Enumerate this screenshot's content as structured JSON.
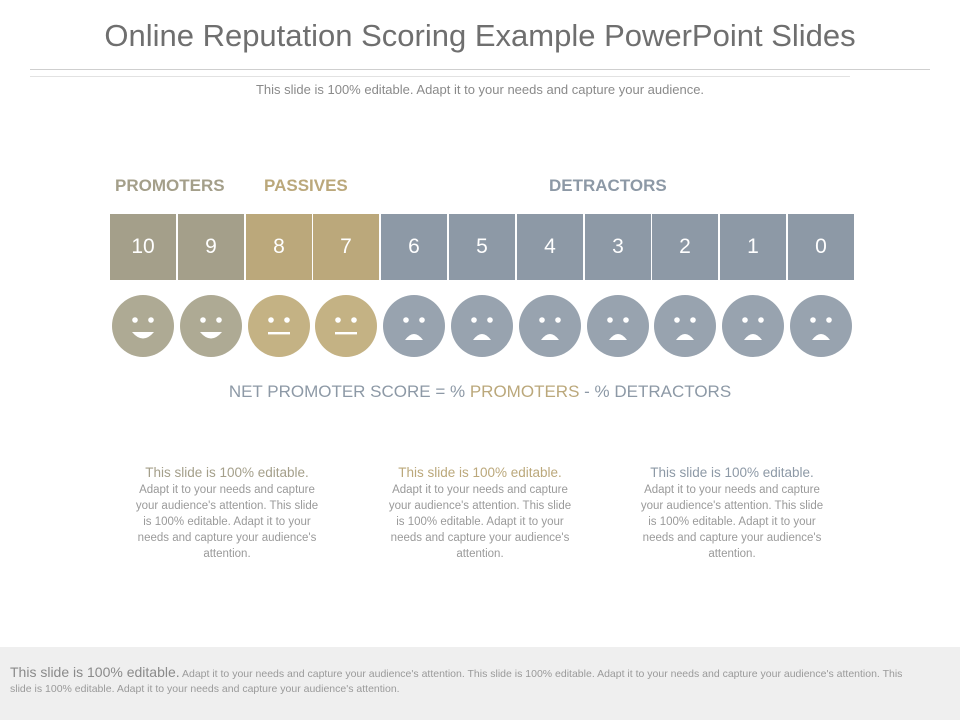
{
  "title": "Online Reputation Scoring Example PowerPoint Slides",
  "subtitle": "This slide is 100% editable. Adapt it to your needs and capture your audience.",
  "colors": {
    "promoter": "#a49f8a",
    "passive": "#bba87b",
    "detractor": "#8d99a6",
    "promoter_face": "#aeaa94",
    "passive_face": "#c4b284",
    "detractor_face": "#98a3af"
  },
  "categories": {
    "promoters": "PROMOTERS",
    "passives": "PASSIVES",
    "detractors": "DETRACTORS"
  },
  "scores": [
    "10",
    "9",
    "8",
    "7",
    "6",
    "5",
    "4",
    "3",
    "2",
    "1",
    "0"
  ],
  "faces": [
    "happy-face-icon",
    "happy-face-icon",
    "neutral-face-icon",
    "neutral-face-icon",
    "sad-face-icon",
    "sad-face-icon",
    "sad-face-icon",
    "sad-face-icon",
    "sad-face-icon",
    "sad-face-icon",
    "sad-face-icon"
  ],
  "nps": {
    "prefix": "NET PROMOTER SCORE = % ",
    "promoters": "PROMOTERS",
    "mid": " - % ",
    "detractors": "DETRACTORS"
  },
  "columns": [
    {
      "lead": "This slide is 100% editable.",
      "body": "Adapt it to your needs and capture your audience's attention. This slide is 100% editable. Adapt it to your needs and capture your audience's attention."
    },
    {
      "lead": "This slide is 100% editable.",
      "body": "Adapt it to your needs and capture your audience's attention. This slide is 100% editable. Adapt it to your needs and capture your audience's attention."
    },
    {
      "lead": "This slide is 100% editable.",
      "body": "Adapt it to your needs and capture your audience's attention. This slide is 100% editable. Adapt it to your needs and capture your audience's attention."
    }
  ],
  "footer": {
    "lead": "This slide is 100% editable.",
    "body": " Adapt it to your needs and capture your audience's attention. This slide is 100% editable. Adapt it to your needs and capture your audience's attention. This slide is 100% editable. Adapt it to your needs and capture your audience's attention."
  }
}
